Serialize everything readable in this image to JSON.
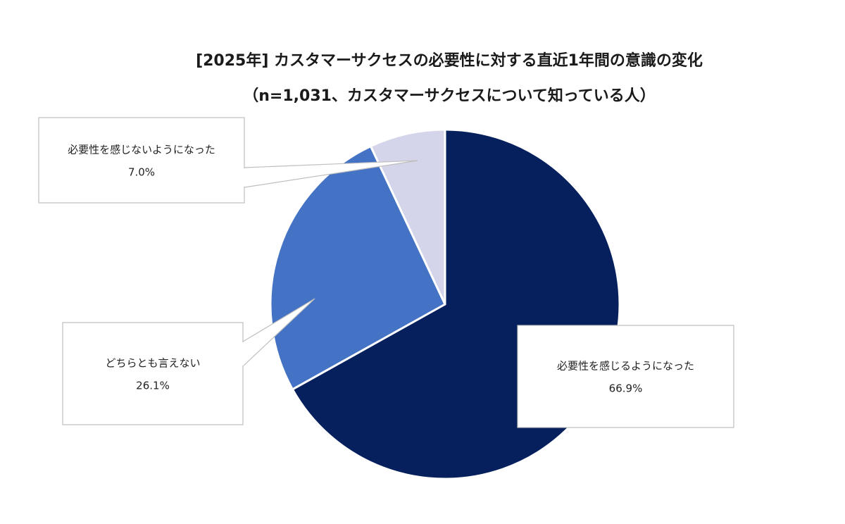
{
  "chart_data": {
    "type": "pie",
    "title": "[2025年] カスタマーサクセスの必要性に対する直近1年間の意識の変化",
    "subtitle": "（n=1,031、カスタマーサクセスについて知っている人）",
    "slices": [
      {
        "label": "必要性を感じるようになった",
        "value": 66.9,
        "value_label": "66.9%",
        "color": "#06205e"
      },
      {
        "label": "どちらとも言えない",
        "value": 26.1,
        "value_label": "26.1%",
        "color": "#4472c4"
      },
      {
        "label": "必要性を感じないようになった",
        "value": 7.0,
        "value_label": "7.0%",
        "color": "#d4d5ea"
      }
    ],
    "start_angle_deg": 0,
    "direction": "clockwise"
  }
}
